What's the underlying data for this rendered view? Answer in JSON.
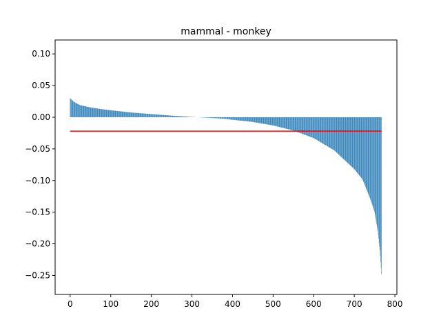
{
  "chart_data": {
    "type": "bar",
    "title": "mammal - monkey",
    "xlabel": "",
    "ylabel": "",
    "xlim": [
      -37,
      805
    ],
    "ylim": [
      -0.28,
      0.122
    ],
    "x_ticks": [
      0,
      100,
      200,
      300,
      400,
      500,
      600,
      700,
      800
    ],
    "y_ticks": [
      -0.25,
      -0.2,
      -0.15,
      -0.1,
      -0.05,
      0.0,
      0.05,
      0.1
    ],
    "x_tick_labels": [
      "0",
      "100",
      "200",
      "300",
      "400",
      "500",
      "600",
      "700",
      "800"
    ],
    "y_tick_labels": [
      "−0.25",
      "−0.20",
      "−0.15",
      "−0.10",
      "−0.05",
      "0.00",
      "0.05",
      "0.10"
    ],
    "bar_count": 768,
    "bar_color": "#1f77b4",
    "mean_line": {
      "value": -0.022,
      "x_start": 0,
      "x_end": 767,
      "color": "#ff0000"
    },
    "value_profile": [
      [
        0,
        0.03
      ],
      [
        10,
        0.024
      ],
      [
        25,
        0.019
      ],
      [
        50,
        0.0155
      ],
      [
        75,
        0.013
      ],
      [
        100,
        0.011
      ],
      [
        150,
        0.0075
      ],
      [
        200,
        0.005
      ],
      [
        250,
        0.0025
      ],
      [
        300,
        0.0005
      ],
      [
        340,
        -0.0008
      ],
      [
        380,
        -0.0025
      ],
      [
        400,
        -0.004
      ],
      [
        450,
        -0.0075
      ],
      [
        500,
        -0.013
      ],
      [
        550,
        -0.021
      ],
      [
        600,
        -0.033
      ],
      [
        650,
        -0.052
      ],
      [
        700,
        -0.082
      ],
      [
        720,
        -0.098
      ],
      [
        740,
        -0.13
      ],
      [
        750,
        -0.15
      ],
      [
        758,
        -0.18
      ],
      [
        763,
        -0.21
      ],
      [
        767,
        -0.248
      ]
    ]
  }
}
